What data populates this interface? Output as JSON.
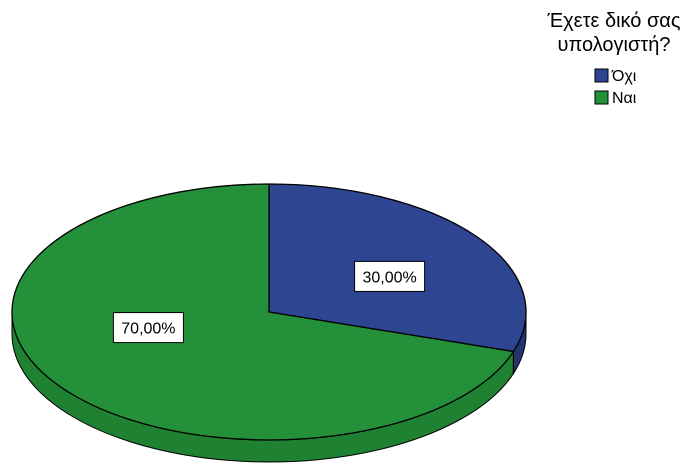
{
  "chart_data": {
    "type": "pie",
    "legend_title": [
      "Έχετε δικό σας",
      "υπολογιστή?"
    ],
    "legend_placement": "top-right",
    "slices": [
      {
        "label": "Όχι",
        "value": 30.0,
        "display": "30,00%",
        "color": "#2e4592",
        "side_color": "#22356f"
      },
      {
        "label": "Ναι",
        "value": 70.0,
        "display": "70,00%",
        "color": "#24903a",
        "side_color": "#1e8232"
      }
    ]
  }
}
